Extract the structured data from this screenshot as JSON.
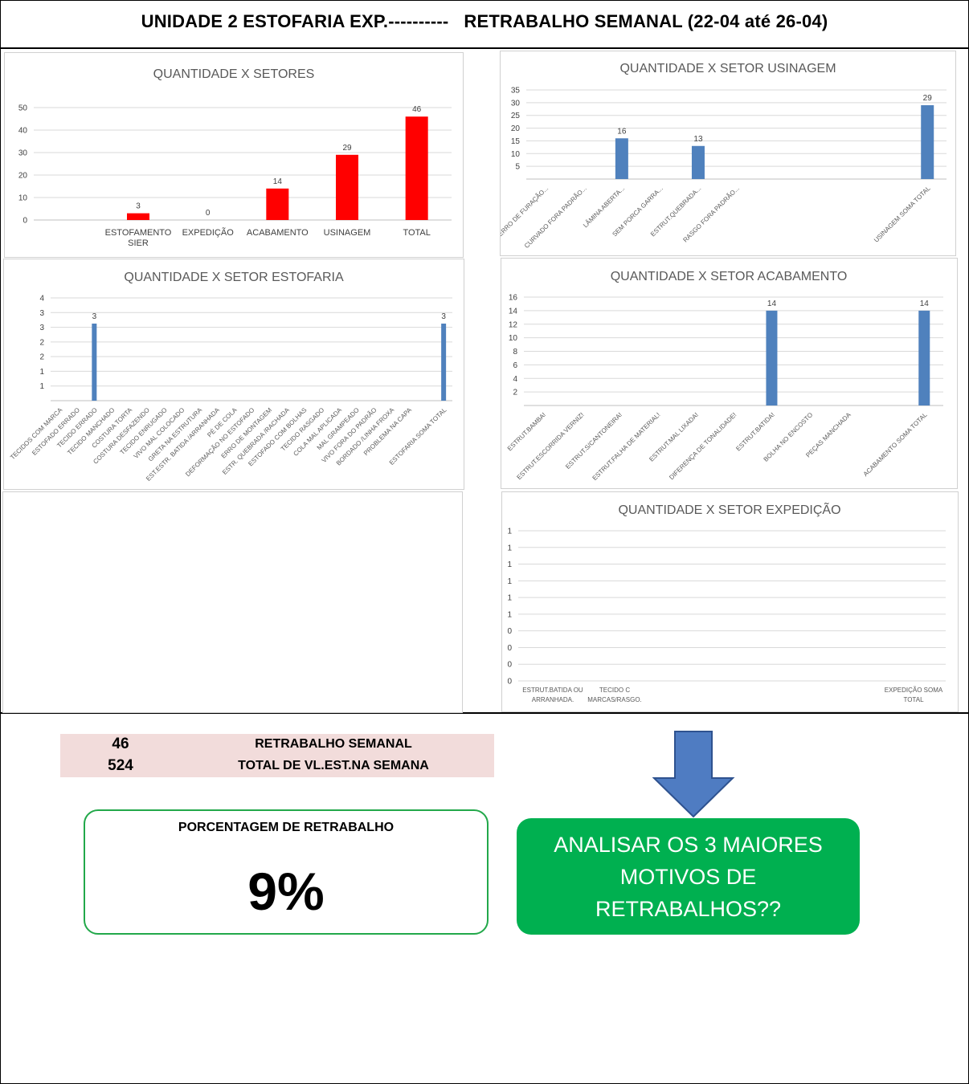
{
  "header": {
    "title": "UNIDADE 2 ESTOFARIA EXP.----------   RETRABALHO SEMANAL (22-04 até 26-04)"
  },
  "colors": {
    "red_bar": "#ff0000",
    "blue_bar": "#4f81bd",
    "green_box": "#00b050",
    "summary_bg": "#f2dcdb",
    "arrow": "#4f7cc2"
  },
  "chart_data": [
    {
      "id": "setores",
      "type": "bar",
      "title": "QUANTIDADE X SETORES",
      "categories": [
        "",
        "ESTOFAMENTO SIER",
        "EXPEDIÇÃO",
        "ACABAMENTO",
        "USINAGEM",
        "TOTAL"
      ],
      "category_lines": [
        [
          ""
        ],
        [
          "ESTOFAMENTO",
          "SIER"
        ],
        [
          "EXPEDIÇÃO"
        ],
        [
          "ACABAMENTO"
        ],
        [
          "USINAGEM"
        ],
        [
          "TOTAL"
        ]
      ],
      "values": [
        null,
        3,
        0,
        14,
        29,
        46
      ],
      "ylim": [
        0,
        50
      ],
      "yticks": [
        "0",
        "10",
        "20",
        "30",
        "40",
        "50"
      ],
      "color": "#ff0000",
      "grid": true
    },
    {
      "id": "usinagem",
      "type": "bar",
      "title": "QUANTIDADE X SETOR USINAGEM",
      "categories": [
        "ERRO DE FURAÇÃO...",
        "CURVADO FORA PADRÃO...",
        "LÂMINA ABERTA...",
        "SEM PORCA GARRA...",
        "ESTRUT.QUEBRADA...",
        "RASGO FORA PADRÃO...",
        "",
        "",
        "",
        "",
        "USINAGEM SOMA TOTAL"
      ],
      "values": [
        null,
        null,
        16,
        null,
        13,
        null,
        null,
        null,
        null,
        null,
        29
      ],
      "ylim": [
        0,
        35
      ],
      "yticks": [
        "",
        "5",
        "10",
        "15",
        "20",
        "25",
        "30",
        "35"
      ],
      "color": "#4f81bd",
      "grid": true
    },
    {
      "id": "estofaria",
      "type": "bar",
      "title": "QUANTIDADE X SETOR ESTOFARIA",
      "categories": [
        "TECIDOS COM MARCA",
        "ESTOFADO ERRADO",
        "TECIDO ERRADO",
        "TECIDO MANCHADO",
        "COSTURA TORTA",
        "COSTURA DESFAZENDO",
        "TECIDO ENRUGADO",
        "VIVO MAL COLOCADO",
        "GRETA NA ESTRUTURA",
        "EST.ESTR. BATIDA /ARRANHADA",
        "PÉ DE COLA",
        "DEFORMAÇÃO NO ESTOFADO",
        "ERRO DE MONTAGEM",
        "ESTR. QUEBRADA /RACHADA",
        "ESTOFADO COM BOLHAS",
        "TECIDO RASGADO",
        "COLA MAL APLICADA",
        "MAL GRAMPEADO",
        "VIVO FORA DO PADRÃO",
        "BORDADO /LINHA FROXA",
        "PROBLEMA NA CAPA",
        "",
        "ESTOFARIA SOMA TOTAL"
      ],
      "values": [
        null,
        null,
        3,
        null,
        null,
        null,
        null,
        null,
        null,
        null,
        null,
        null,
        null,
        null,
        null,
        null,
        null,
        null,
        null,
        null,
        null,
        null,
        3
      ],
      "ylim": [
        0,
        4
      ],
      "yticks": [
        "",
        "1",
        "1",
        "2",
        "2",
        "3",
        "3",
        "4"
      ],
      "color": "#4f81bd",
      "grid": true
    },
    {
      "id": "acabamento",
      "type": "bar",
      "title": "QUANTIDADE X SETOR ACABAMENTO",
      "categories": [
        "ESTRUT.BAMBA!",
        "ESTRUT.ESCORRIDA VERNIZ!",
        "ESTRUT.S/CANTONEIRA!",
        "ESTRUT.FALHA DE MATERIAL!",
        "ESTRUT.MAL LIXADA!",
        "DIFERENÇA DE TONALIDADE!",
        "ESTRUT.BATIDA!",
        "BOLHA NO ENCOSTO",
        "PEÇAS MANCHADA",
        "",
        "ACABAMENTO SOMA TOTAL"
      ],
      "values": [
        null,
        null,
        null,
        null,
        null,
        null,
        14,
        null,
        null,
        null,
        14
      ],
      "ylim": [
        0,
        16
      ],
      "yticks": [
        "",
        "2",
        "4",
        "6",
        "8",
        "10",
        "12",
        "14",
        "16"
      ],
      "color": "#4f81bd",
      "grid": true
    },
    {
      "id": "expedicao",
      "type": "bar",
      "title": "QUANTIDADE X SETOR EXPEDIÇÃO",
      "categories": [
        "ESTRUT.BATIDA OU ARRANHADA.",
        "TECIDO C MARCAS/RASGO.",
        "EXPEDIÇÃO SOMA TOTAL"
      ],
      "category_lines": [
        [
          "ESTRUT.BATIDA OU",
          "ARRANHADA."
        ],
        [
          "TECIDO C",
          "MARCAS/RASGO."
        ],
        [
          "EXPEDIÇÃO SOMA",
          "TOTAL"
        ]
      ],
      "values": [
        null,
        null,
        null
      ],
      "yticks": [
        "0",
        "0",
        "0",
        "0",
        "1",
        "1",
        "1",
        "1",
        "1",
        "1"
      ],
      "grid": true
    }
  ],
  "summary": {
    "rework_count": "46",
    "rework_label": "RETRABALHO SEMANAL",
    "total_count": "524",
    "total_label": "TOTAL DE VL.EST.NA SEMANA"
  },
  "percentage": {
    "title": "PORCENTAGEM DE RETRABALHO",
    "value": "9%"
  },
  "callout": {
    "text": "ANALISAR OS 3 MAIORES MOTIVOS DE RETRABALHOS??"
  }
}
